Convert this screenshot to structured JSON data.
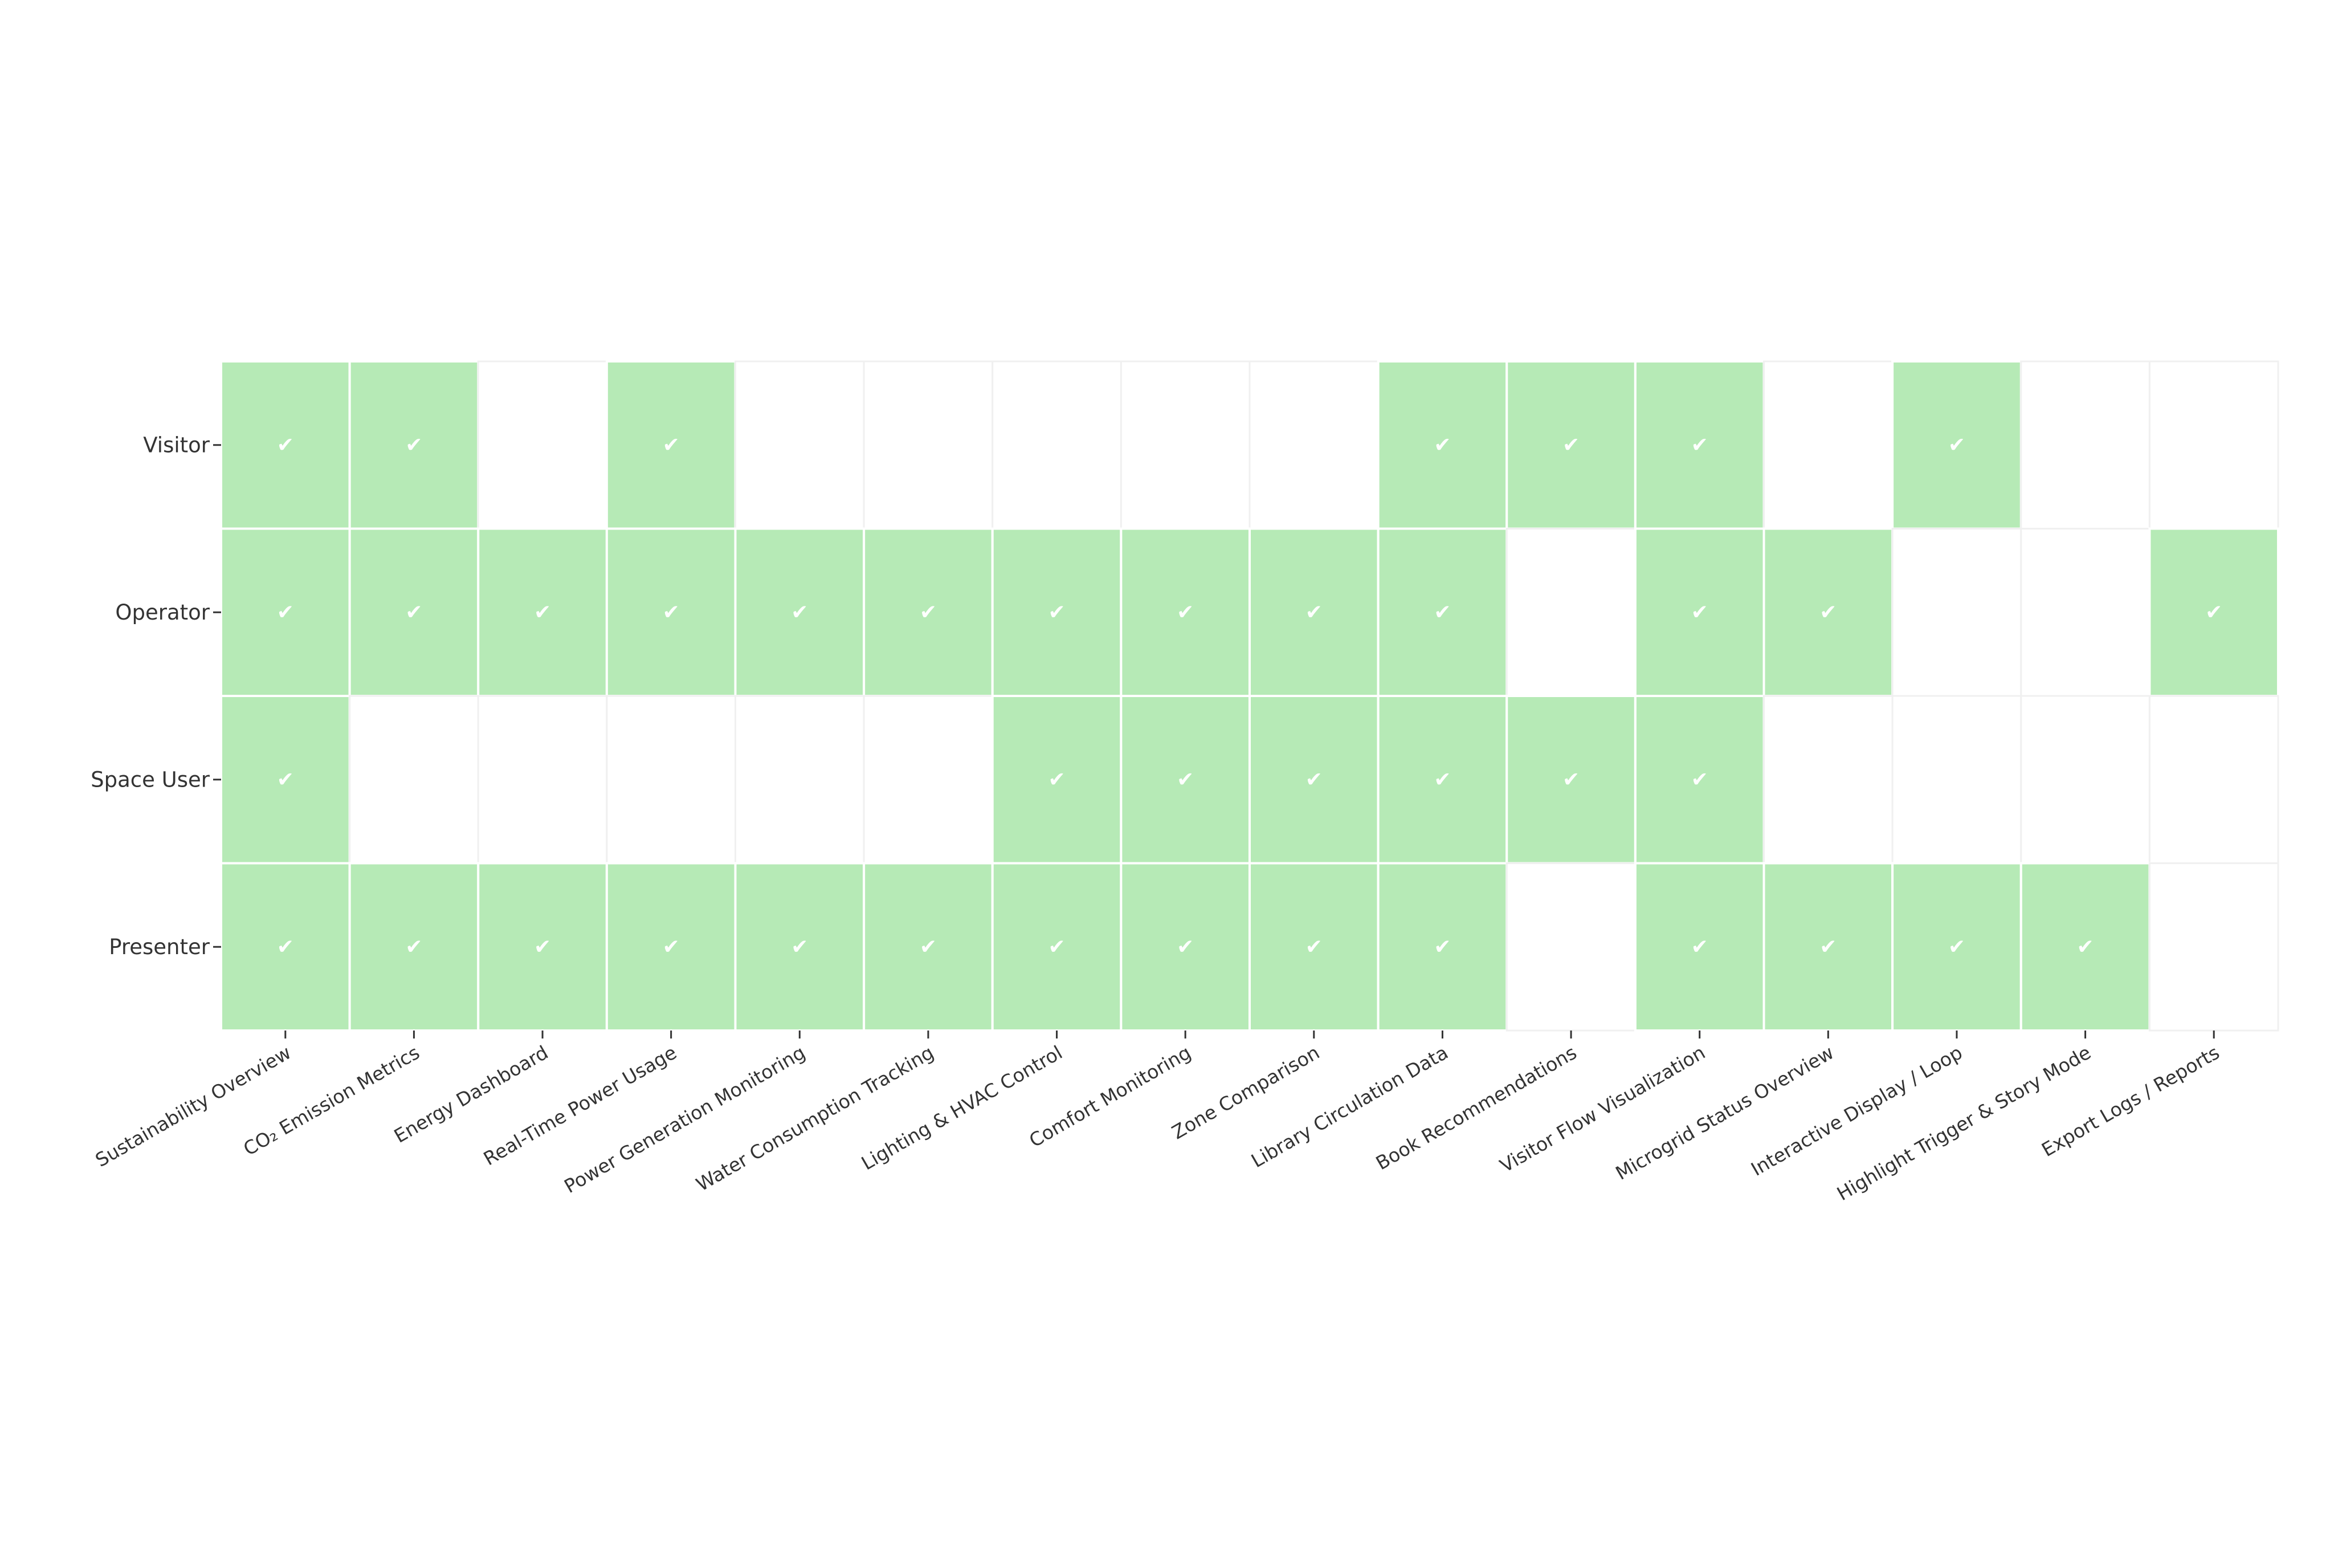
{
  "chart_data": {
    "type": "heatmap",
    "rows": [
      "Visitor",
      "Operator",
      "Space User",
      "Presenter"
    ],
    "columns": [
      "Sustainability Overview",
      "CO₂ Emission Metrics",
      "Energy Dashboard",
      "Real-Time Power Usage",
      "Power Generation Monitoring",
      "Water Consumption Tracking",
      "Lighting & HVAC Control",
      "Comfort Monitoring",
      "Zone Comparison",
      "Library Circulation Data",
      "Book Recommendations",
      "Visitor Flow Visualization",
      "Microgrid Status Overview",
      "Interactive Display / Loop",
      "Highlight Trigger & Story Mode",
      "Export Logs / Reports"
    ],
    "values": [
      [
        1,
        1,
        0,
        1,
        0,
        0,
        0,
        0,
        0,
        1,
        1,
        1,
        0,
        1,
        0,
        0
      ],
      [
        1,
        1,
        1,
        1,
        1,
        1,
        1,
        1,
        1,
        1,
        0,
        1,
        1,
        0,
        0,
        1
      ],
      [
        1,
        0,
        0,
        0,
        0,
        0,
        1,
        1,
        1,
        1,
        1,
        1,
        0,
        0,
        0,
        0
      ],
      [
        1,
        1,
        1,
        1,
        1,
        1,
        1,
        1,
        1,
        1,
        0,
        1,
        1,
        1,
        1,
        0
      ]
    ],
    "check_symbol": "✔",
    "colors": {
      "on": "#b6eab6",
      "off": "#ffffff",
      "grid": "#f0f0f0",
      "check": "#ffffff"
    }
  }
}
